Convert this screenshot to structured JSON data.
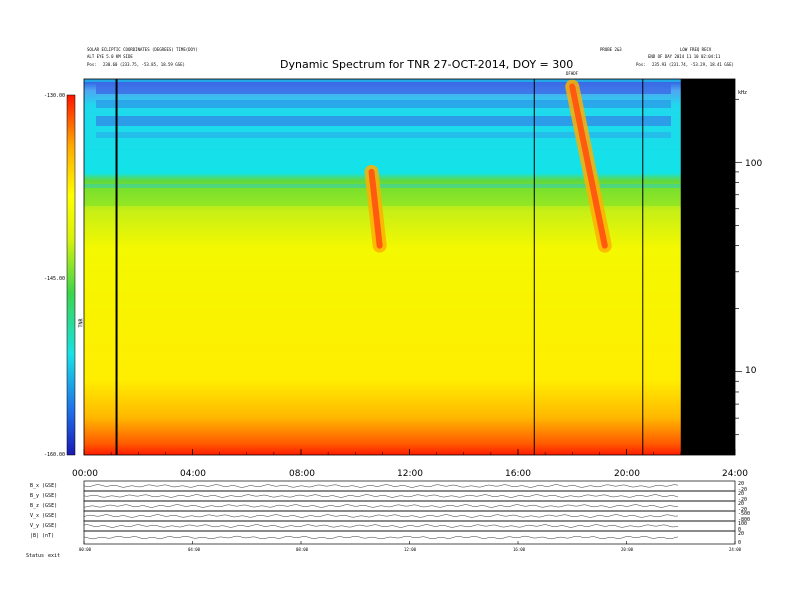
{
  "chart_data": {
    "type": "heatmap",
    "title": "Dynamic Spectrum for TNR 27-OCT-2014, DOY = 300",
    "header_left": {
      "line1": "SOLAR ECLIPTIC COORDINATES (DEGREES) TIME(DOY)",
      "line2": "ALT EYE 5.0 KM SIDE",
      "line3_label": "Pos:",
      "line3_value": "230.60 (233.75, -53.85, 18.59 GSE)"
    },
    "header_right": {
      "line1a": "PROBE 2&3",
      "line1b": "LOW FREQ RECV",
      "line2": "END OF DAY 2014 11 10 02:04:11",
      "line3_label": "Pos:",
      "line3_value": "235.93 (231.74, -53.29, 18.41 GSE)"
    },
    "burst_label": "DFHDF",
    "colorbar": {
      "ticks": [
        "-130.00",
        "-145.00",
        "-160.00"
      ],
      "label": "TNR",
      "range_db": [
        -160,
        -130
      ],
      "colors": [
        "#1a1ab3",
        "#1f6ee8",
        "#18e0e6",
        "#3cd64b",
        "#d7f20c",
        "#ffff00",
        "#ffa800",
        "#ff1400"
      ]
    },
    "x_axis": {
      "ticks": [
        "00:00",
        "04:00",
        "08:00",
        "12:00",
        "16:00",
        "20:00",
        "24:00"
      ],
      "tick_hours": [
        0,
        4,
        8,
        12,
        16,
        20,
        24
      ],
      "range_hours": [
        0,
        24
      ]
    },
    "y_axis": {
      "scale": "log",
      "ticks": [
        "100",
        "10"
      ],
      "tick_values": [
        100,
        10
      ],
      "unit": "kHz",
      "range": [
        4,
        250
      ]
    },
    "vertical_markers_hours": [
      1.2,
      16.6,
      20.6
    ],
    "data_gap_hours": [
      22.0,
      24.0
    ],
    "bursts": [
      {
        "start_hour": 18.0,
        "start_khz": 230,
        "end_hour": 19.2,
        "end_khz": 40
      },
      {
        "start_hour": 10.6,
        "start_khz": 90,
        "end_hour": 10.9,
        "end_khz": 40
      }
    ],
    "panels": [
      {
        "label": "B_x (GSE)",
        "right_ticks": [
          "20",
          "-20"
        ]
      },
      {
        "label": "B_y (GSE)",
        "right_ticks": [
          "20",
          "-20"
        ]
      },
      {
        "label": "B_z (GSE)",
        "right_ticks": [
          "20",
          "-20"
        ]
      },
      {
        "label": "V_x (GSE)",
        "right_ticks": [
          "-500",
          "-800"
        ]
      },
      {
        "label": "V_y (GSE)",
        "right_ticks": [
          "100",
          "0"
        ]
      },
      {
        "label": "|B| (nT)",
        "right_ticks": [
          "20",
          "0"
        ]
      }
    ],
    "bottom_axis": {
      "ticks": [
        "00:00",
        "04:00",
        "08:00",
        "12:00",
        "16:00",
        "20:00",
        "24:00"
      ],
      "status_label": "Status",
      "status_value": "exit"
    }
  }
}
